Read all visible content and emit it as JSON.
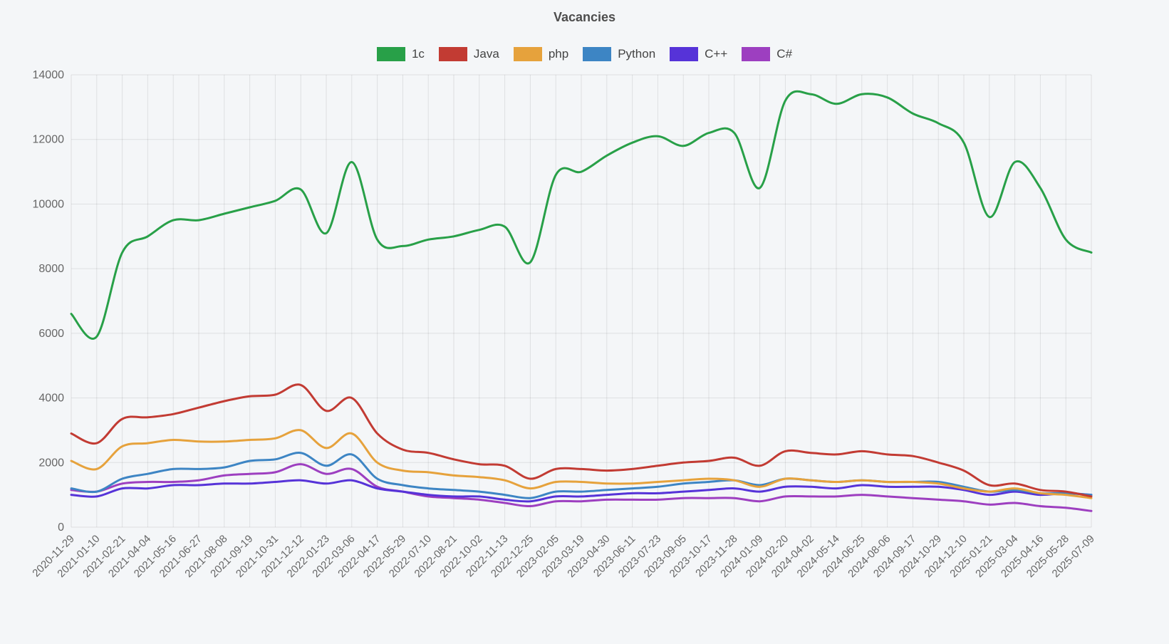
{
  "title": "Vacancies",
  "colors": {
    "background": "#f4f6f8",
    "grid": "rgba(0,0,0,0.09)",
    "axis_text": "#666666",
    "title_text": "#4d4d4d",
    "legend_text": "#444444"
  },
  "chart_data": {
    "type": "line",
    "title": "Vacancies",
    "xlabel": "",
    "ylabel": "",
    "ylim": [
      0,
      14000
    ],
    "ytick_step": 2000,
    "grid": true,
    "legend_position": "top",
    "x_label_rotation": -45,
    "x": [
      "2020-11-29",
      "2021-01-10",
      "2021-02-21",
      "2021-04-04",
      "2021-05-16",
      "2021-06-27",
      "2021-08-08",
      "2021-09-19",
      "2021-10-31",
      "2021-12-12",
      "2022-01-23",
      "2022-03-06",
      "2022-04-17",
      "2022-05-29",
      "2022-07-10",
      "2022-08-21",
      "2022-10-02",
      "2022-11-13",
      "2022-12-25",
      "2023-02-05",
      "2023-03-19",
      "2023-04-30",
      "2023-06-11",
      "2023-07-23",
      "2023-09-05",
      "2023-10-17",
      "2023-11-28",
      "2024-01-09",
      "2024-02-20",
      "2024-04-02",
      "2024-05-14",
      "2024-06-25",
      "2024-08-06",
      "2024-09-17",
      "2024-10-29",
      "2024-12-10",
      "2025-01-21",
      "2025-03-04",
      "2025-04-16",
      "2025-05-28",
      "2025-07-09"
    ],
    "series": [
      {
        "name": "1c",
        "color": "#28a048",
        "values": [
          6600,
          5900,
          8500,
          9000,
          9500,
          9500,
          9700,
          9900,
          10100,
          10450,
          9100,
          11300,
          8900,
          8700,
          8900,
          9000,
          9200,
          9300,
          8200,
          10900,
          11000,
          11500,
          11900,
          12100,
          11800,
          12200,
          12200,
          10500,
          13200,
          13400,
          13100,
          13400,
          13300,
          12800,
          12500,
          11900,
          9600,
          11300,
          10500,
          8900,
          8500
        ]
      },
      {
        "name": "Java",
        "color": "#c23b33",
        "values": [
          2900,
          2600,
          3350,
          3400,
          3500,
          3700,
          3900,
          4050,
          4100,
          4400,
          3600,
          4000,
          2900,
          2400,
          2300,
          2100,
          1950,
          1900,
          1500,
          1800,
          1800,
          1750,
          1800,
          1900,
          2000,
          2050,
          2150,
          1900,
          2350,
          2300,
          2250,
          2350,
          2250,
          2200,
          2000,
          1750,
          1300,
          1350,
          1150,
          1100,
          950
        ]
      },
      {
        "name": "php",
        "color": "#e6a23c",
        "values": [
          2050,
          1800,
          2500,
          2600,
          2700,
          2650,
          2650,
          2700,
          2750,
          3000,
          2450,
          2900,
          2000,
          1750,
          1700,
          1600,
          1550,
          1450,
          1200,
          1400,
          1400,
          1350,
          1350,
          1400,
          1450,
          1500,
          1450,
          1250,
          1500,
          1450,
          1400,
          1450,
          1400,
          1400,
          1350,
          1200,
          1100,
          1200,
          1050,
          1000,
          900
        ]
      },
      {
        "name": "Python",
        "color": "#3d85c4",
        "values": [
          1200,
          1100,
          1500,
          1650,
          1800,
          1800,
          1850,
          2050,
          2100,
          2300,
          1900,
          2250,
          1500,
          1300,
          1200,
          1150,
          1100,
          1000,
          900,
          1100,
          1100,
          1150,
          1200,
          1250,
          1350,
          1400,
          1450,
          1300,
          1500,
          1450,
          1400,
          1450,
          1400,
          1400,
          1400,
          1250,
          1100,
          1150,
          1050,
          1050,
          1000
        ]
      },
      {
        "name": "C++",
        "color": "#5633d8",
        "values": [
          1000,
          950,
          1200,
          1200,
          1300,
          1300,
          1350,
          1350,
          1400,
          1450,
          1350,
          1450,
          1200,
          1100,
          1000,
          950,
          950,
          850,
          800,
          950,
          950,
          1000,
          1050,
          1050,
          1100,
          1150,
          1200,
          1100,
          1250,
          1250,
          1200,
          1300,
          1250,
          1250,
          1250,
          1150,
          1000,
          1100,
          1000,
          1050,
          1000
        ]
      },
      {
        "name": "C#",
        "color": "#9d3fc0",
        "values": [
          1150,
          1100,
          1350,
          1400,
          1400,
          1450,
          1600,
          1650,
          1700,
          1950,
          1650,
          1800,
          1250,
          1100,
          950,
          900,
          850,
          750,
          650,
          800,
          800,
          850,
          850,
          850,
          900,
          900,
          900,
          800,
          950,
          950,
          950,
          1000,
          950,
          900,
          850,
          800,
          700,
          750,
          650,
          600,
          500
        ]
      }
    ]
  }
}
